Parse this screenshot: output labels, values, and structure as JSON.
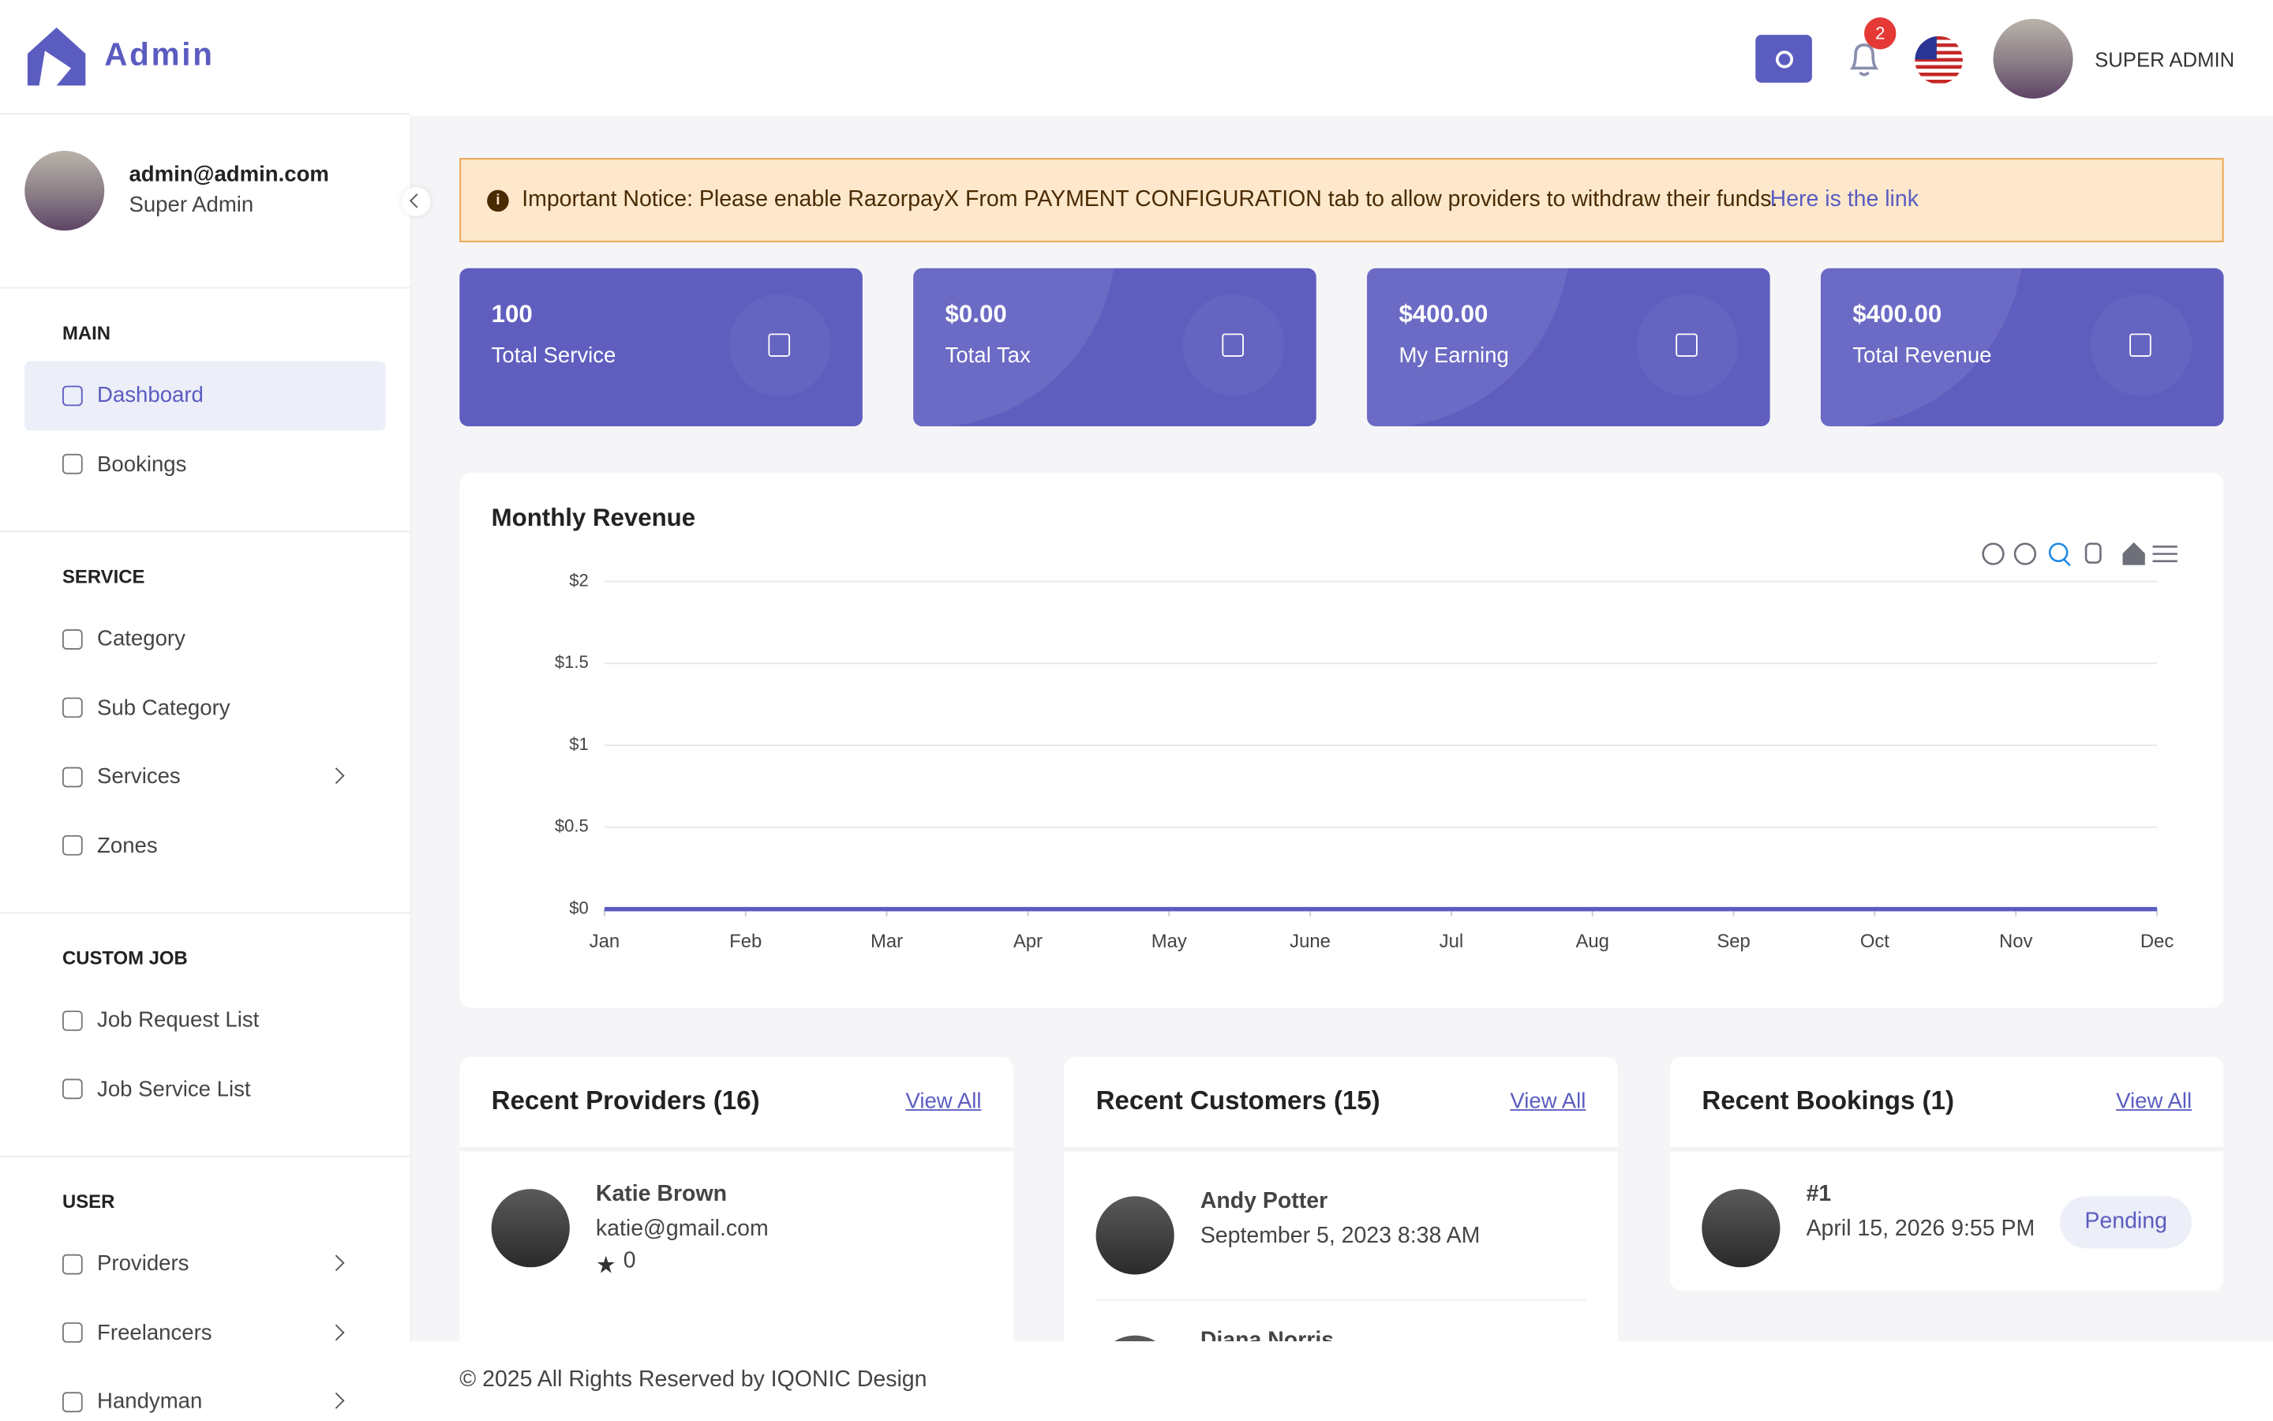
{
  "brand": "Admin",
  "header": {
    "notifications": "2",
    "user": "SUPER ADMIN"
  },
  "profile": {
    "email": "admin@admin.com",
    "role": "Super Admin"
  },
  "sidebar": [
    {
      "heading": "MAIN",
      "items": [
        "Dashboard",
        "Bookings"
      ]
    },
    {
      "heading": "SERVICE",
      "items": [
        "Category",
        "Sub Category",
        "Services",
        "Zones"
      ]
    },
    {
      "heading": "CUSTOM JOB",
      "items": [
        "Job Request List",
        "Job Service List"
      ]
    },
    {
      "heading": "USER",
      "items": [
        "Providers",
        "Freelancers",
        "Handyman"
      ]
    }
  ],
  "notice": {
    "text": "Important Notice: Please enable RazorpayX From PAYMENT CONFIGURATION tab to allow providers to withdraw their funds.",
    "link": "Here is the link"
  },
  "stats": [
    {
      "value": "100",
      "label": "Total Service"
    },
    {
      "value": "$0.00",
      "label": "Total Tax"
    },
    {
      "value": "$400.00",
      "label": "My Earning"
    },
    {
      "value": "$400.00",
      "label": "Total Revenue"
    }
  ],
  "chart_data": {
    "type": "line",
    "title": "Monthly Revenue",
    "categories": [
      "Jan",
      "Feb",
      "Mar",
      "Apr",
      "May",
      "June",
      "Jul",
      "Aug",
      "Sep",
      "Oct",
      "Nov",
      "Dec"
    ],
    "color": "#5b5cc0",
    "values": [
      0,
      0,
      0,
      0,
      0,
      0,
      0,
      0,
      0,
      0,
      0,
      0
    ],
    "ylim": [
      0,
      2
    ],
    "yticks": [
      {
        "value": 0,
        "label": "$0"
      },
      {
        "value": 0.5,
        "label": "$0.5"
      },
      {
        "value": 1,
        "label": "$1"
      },
      {
        "value": 1.5,
        "label": "$1.5"
      },
      {
        "value": 2,
        "label": "$2"
      }
    ],
    "grid": true
  },
  "panels": [
    {
      "title": "Recent Providers (16)",
      "link": "View All",
      "items": [
        {
          "name": "Katie Brown",
          "detail": "katie@gmail.com",
          "rating": "0"
        }
      ]
    },
    {
      "title": "Recent Customers (15)",
      "link": "View All",
      "items": [
        {
          "name": "Andy Potter",
          "detail": "September 5, 2023 8:38 AM"
        },
        {
          "name": "Diana Norris"
        }
      ]
    },
    {
      "title": "Recent Bookings (1)",
      "link": "View All",
      "items": [
        {
          "name": "#1",
          "detail": "April 15, 2026 9:55 PM",
          "status": "Pending"
        }
      ]
    }
  ],
  "footer": "© 2025 All Rights Reserved by IQONIC Design"
}
